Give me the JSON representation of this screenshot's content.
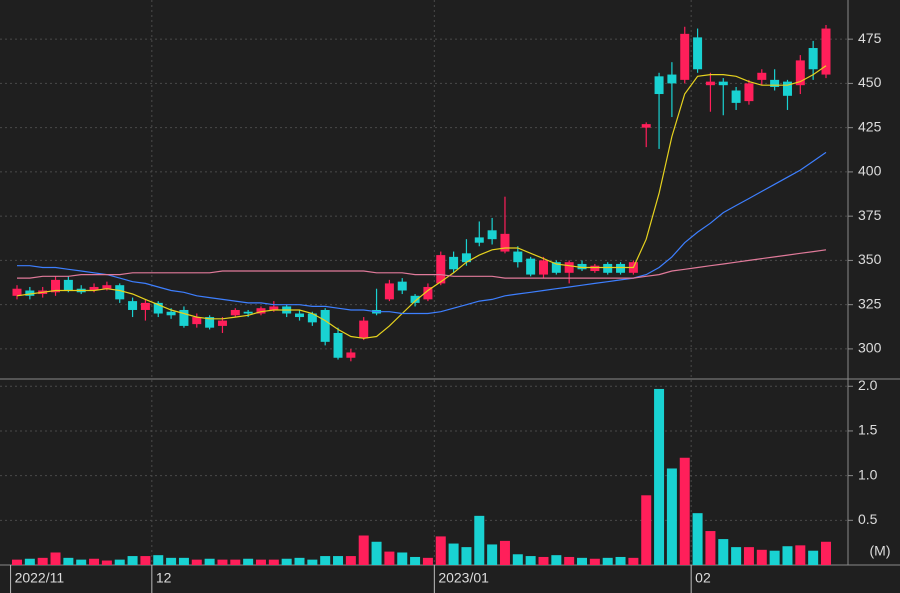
{
  "chart_data": [
    {
      "type": "candlestick",
      "categories": [
        "2022/11",
        null,
        null,
        null,
        null,
        null,
        null,
        null,
        null,
        null,
        null,
        "12",
        null,
        null,
        null,
        null,
        null,
        null,
        null,
        null,
        null,
        null,
        null,
        null,
        null,
        null,
        null,
        null,
        null,
        null,
        null,
        null,
        null,
        "2023/01",
        null,
        null,
        null,
        null,
        null,
        null,
        null,
        null,
        null,
        null,
        null,
        null,
        null,
        null,
        null,
        null,
        null,
        null,
        null,
        "02",
        null,
        null,
        null,
        null,
        null,
        null,
        null,
        null,
        null,
        null
      ],
      "open": [
        330,
        333,
        331,
        332,
        339,
        334,
        333,
        334,
        336,
        327,
        322,
        326,
        321,
        322,
        314,
        318,
        313,
        319,
        321,
        320,
        322,
        324,
        320,
        320,
        322,
        309,
        295,
        306,
        322,
        328,
        338,
        330,
        328,
        337,
        352,
        354,
        363,
        367,
        355,
        355,
        351,
        342,
        349,
        343,
        348,
        344,
        348,
        348,
        343,
        425,
        454,
        455,
        452,
        476,
        449,
        451,
        446,
        440,
        452,
        452,
        451,
        449,
        470,
        455
      ],
      "high": [
        336,
        335,
        335,
        341,
        341,
        336,
        337,
        338,
        337,
        329,
        328,
        327,
        323,
        324,
        320,
        319,
        318,
        323,
        322,
        324,
        327,
        325,
        322,
        321,
        323,
        312,
        300,
        318,
        334,
        339,
        340,
        331,
        337,
        355,
        355,
        362,
        372,
        374,
        386,
        358,
        352,
        352,
        350,
        350,
        350,
        348,
        349,
        349,
        350,
        428,
        456,
        462,
        482,
        481,
        456,
        453,
        448,
        452,
        458,
        458,
        452,
        466,
        474,
        483
      ],
      "low": [
        328,
        328,
        329,
        330,
        332,
        331,
        332,
        333,
        326,
        318,
        316,
        318,
        317,
        312,
        312,
        311,
        309,
        318,
        318,
        319,
        321,
        318,
        316,
        313,
        302,
        294,
        293,
        305,
        319,
        327,
        331,
        324,
        327,
        336,
        343,
        347,
        358,
        359,
        354,
        346,
        341,
        340,
        342,
        337,
        344,
        343,
        342,
        342,
        342,
        414,
        413,
        431,
        450,
        456,
        434,
        432,
        435,
        438,
        449,
        446,
        435,
        444,
        452,
        453
      ],
      "close": [
        334,
        330,
        333,
        339,
        333,
        332,
        335,
        336,
        328,
        322,
        326,
        320,
        319,
        313,
        318,
        312,
        316,
        322,
        320,
        323,
        324,
        320,
        318,
        315,
        304,
        295,
        298,
        316,
        320,
        337,
        333,
        326,
        335,
        353,
        345,
        349,
        360,
        362,
        365,
        349,
        342,
        350,
        343,
        349,
        345,
        347,
        343,
        343,
        349,
        427,
        444,
        450,
        478,
        458,
        451,
        449,
        439,
        450,
        456,
        448,
        443,
        463,
        458,
        481
      ],
      "up_color": "#ff1f5a",
      "down_color": "#19d2d2",
      "lines": [
        {
          "color": "#e6d21e",
          "values": [
            330,
            331,
            332,
            333,
            333,
            333,
            333,
            334,
            333,
            331,
            328,
            325,
            322,
            320,
            318,
            317,
            317,
            318,
            319,
            321,
            322,
            322,
            322,
            320,
            316,
            311,
            307,
            306,
            307,
            313,
            320,
            327,
            333,
            338,
            343,
            349,
            353,
            356,
            357,
            357,
            354,
            351,
            348,
            347,
            346,
            346,
            346,
            346,
            346,
            362,
            388,
            420,
            444,
            454,
            455,
            455,
            454,
            451,
            449,
            449,
            449,
            451,
            455,
            460
          ]
        },
        {
          "color": "#3d7fff",
          "values": [
            347,
            347,
            346,
            346,
            345,
            344,
            343,
            342,
            340,
            338,
            337,
            335,
            333,
            332,
            330,
            329,
            328,
            327,
            326,
            326,
            325,
            325,
            325,
            324,
            324,
            323,
            322,
            322,
            321,
            321,
            320,
            320,
            320,
            321,
            323,
            325,
            327,
            328,
            330,
            331,
            332,
            333,
            334,
            335,
            336,
            337,
            338,
            339,
            340,
            342,
            346,
            352,
            360,
            366,
            371,
            377,
            381,
            385,
            389,
            393,
            397,
            401,
            406,
            411
          ]
        },
        {
          "color": "#e07a9a",
          "values": [
            340,
            340,
            341,
            341,
            341,
            342,
            342,
            342,
            342,
            343,
            343,
            343,
            343,
            343,
            343,
            343,
            344,
            344,
            344,
            344,
            344,
            344,
            344,
            344,
            344,
            344,
            344,
            344,
            343,
            343,
            343,
            342,
            342,
            342,
            341,
            341,
            341,
            341,
            340,
            340,
            340,
            340,
            340,
            340,
            340,
            340,
            340,
            340,
            340,
            341,
            342,
            344,
            345,
            346,
            347,
            348,
            349,
            350,
            351,
            352,
            353,
            354,
            355,
            356
          ]
        }
      ],
      "ylim": [
        283,
        494.3
      ],
      "yticks": [
        300,
        325,
        350,
        375,
        400,
        425,
        450,
        475
      ],
      "grid": true
    },
    {
      "type": "bar",
      "values": [
        0.06,
        0.07,
        0.08,
        0.14,
        0.08,
        0.06,
        0.07,
        0.05,
        0.06,
        0.1,
        0.1,
        0.11,
        0.08,
        0.08,
        0.06,
        0.07,
        0.06,
        0.06,
        0.07,
        0.06,
        0.06,
        0.07,
        0.08,
        0.06,
        0.1,
        0.1,
        0.1,
        0.33,
        0.26,
        0.15,
        0.14,
        0.09,
        0.08,
        0.32,
        0.24,
        0.2,
        0.55,
        0.23,
        0.27,
        0.12,
        0.1,
        0.09,
        0.11,
        0.09,
        0.08,
        0.07,
        0.08,
        0.09,
        0.08,
        0.78,
        1.97,
        1.08,
        1.2,
        0.58,
        0.38,
        0.29,
        0.2,
        0.2,
        0.17,
        0.16,
        0.21,
        0.22,
        0.16,
        0.26
      ],
      "ylim": [
        0,
        2.07
      ],
      "yticks": [
        0.5,
        {
          "value": 1,
          "label": "1.0"
        },
        1.5,
        {
          "value": 2,
          "label": "2.0"
        }
      ],
      "unit_label": "(M)",
      "grid": true
    }
  ]
}
